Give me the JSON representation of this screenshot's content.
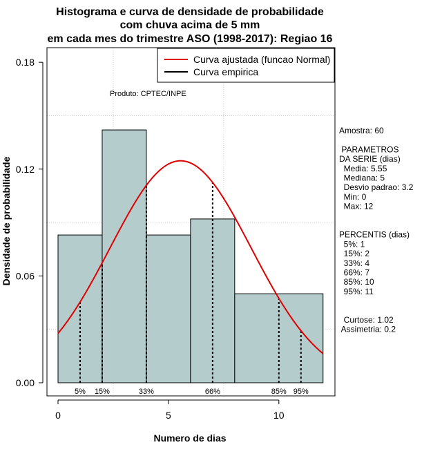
{
  "chart_data": {
    "type": "bar",
    "title": [
      "Histograma e curva de densidade de probabilidade",
      "com chuva acima de 5 mm",
      "em cada mes do trimestre ASO (1998-2017): Regiao 16"
    ],
    "xlabel": "Numero de dias",
    "ylabel": "Densidade de probabilidade",
    "xlim": [
      -0.5,
      12.5
    ],
    "ylim": [
      0,
      0.18
    ],
    "x_ticks": [
      0,
      5,
      10
    ],
    "y_ticks": [
      0.0,
      0.06,
      0.12,
      0.18
    ],
    "y_tick_labels": [
      "0.00",
      "0.06",
      "0.12",
      "0.18"
    ],
    "grid": true,
    "bins": [
      {
        "start": 0,
        "end": 2,
        "density": 0.083
      },
      {
        "start": 2,
        "end": 4,
        "density": 0.142
      },
      {
        "start": 4,
        "end": 6,
        "density": 0.083
      },
      {
        "start": 6,
        "end": 8,
        "density": 0.092
      },
      {
        "start": 8,
        "end": 12,
        "density": 0.05
      }
    ],
    "normal_fit": {
      "mean": 5.55,
      "sd": 3.2,
      "color": "#e00000"
    },
    "percentile_lines": [
      {
        "label": "5%",
        "x": 1
      },
      {
        "label": "15%",
        "x": 2
      },
      {
        "label": "33%",
        "x": 4
      },
      {
        "label": "66%",
        "x": 7
      },
      {
        "label": "85%",
        "x": 10
      },
      {
        "label": "95%",
        "x": 11
      }
    ],
    "legend": {
      "position": "top-right",
      "entries": [
        {
          "label": "Curva ajustada (funcao Normal)",
          "color": "#e00000"
        },
        {
          "label": "Curva empirica",
          "color": "#000000"
        }
      ]
    },
    "annotation": "Produto: CPTEC/INPE",
    "bar_color": "#b5cccc",
    "stats_lines": [
      "Amostra: 60",
      "",
      " PARAMETROS",
      "DA SERIE (dias)",
      "  Media: 5.55",
      "  Mediana: 5",
      "  Desvio padrao: 3.2",
      "  Min: 0",
      "  Max: 12",
      "",
      "",
      "PERCENTIS (dias)",
      "  5%: 1",
      "  15%: 2",
      "  33%: 4",
      "  66%: 7",
      "  85%: 10",
      "  95%: 11",
      "",
      "",
      "  Curtose: 1.02",
      " Assimetria: 0.2"
    ]
  }
}
